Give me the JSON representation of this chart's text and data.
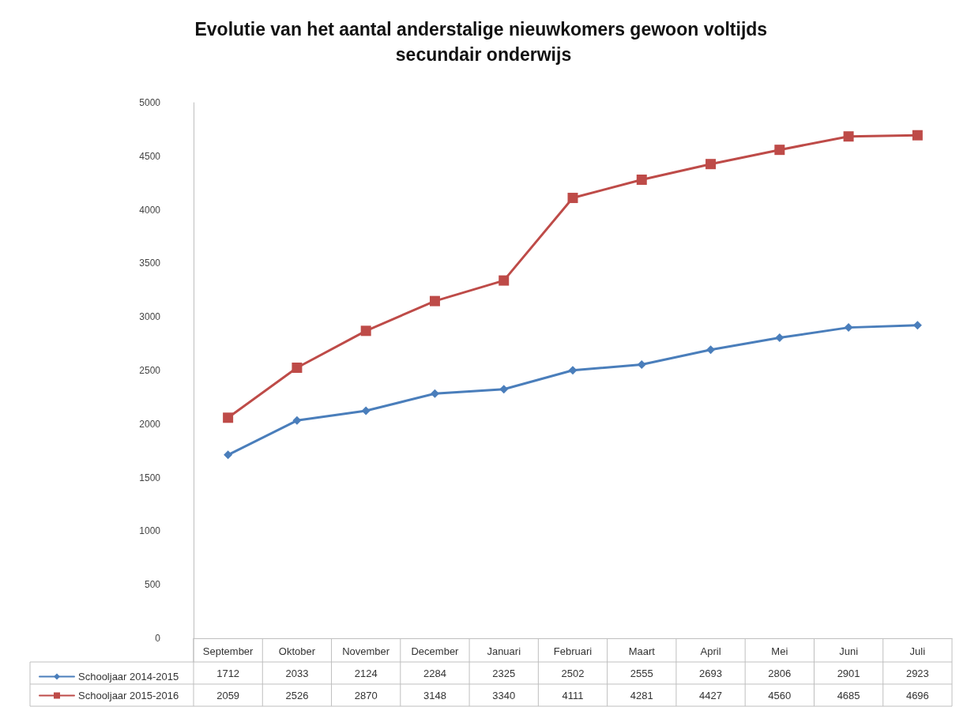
{
  "chart_data": {
    "type": "line",
    "title": "Evolutie van het aantal anderstalige nieuwkomers gewoon voltijds secundair onderwijs",
    "categories": [
      "September",
      "Oktober",
      "November",
      "December",
      "Januari",
      "Februari",
      "Maart",
      "April",
      "Mei",
      "Juni",
      "Juli"
    ],
    "series": [
      {
        "name": "Schooljaar 2014-2015",
        "color": "#4a7ebb",
        "marker": "diamond",
        "values": [
          1712,
          2033,
          2124,
          2284,
          2325,
          2502,
          2555,
          2693,
          2806,
          2901,
          2923
        ]
      },
      {
        "name": "Schooljaar 2015-2016",
        "color": "#be4b48",
        "marker": "square",
        "values": [
          2059,
          2526,
          2870,
          3148,
          3340,
          4111,
          4281,
          4427,
          4560,
          4685,
          4696
        ]
      }
    ],
    "ylim": [
      0,
      5000
    ],
    "yticks": [
      0,
      500,
      1000,
      1500,
      2000,
      2500,
      3000,
      3500,
      4000,
      4500,
      5000
    ],
    "grid": false,
    "legend": "bottom",
    "data_labels": true
  }
}
